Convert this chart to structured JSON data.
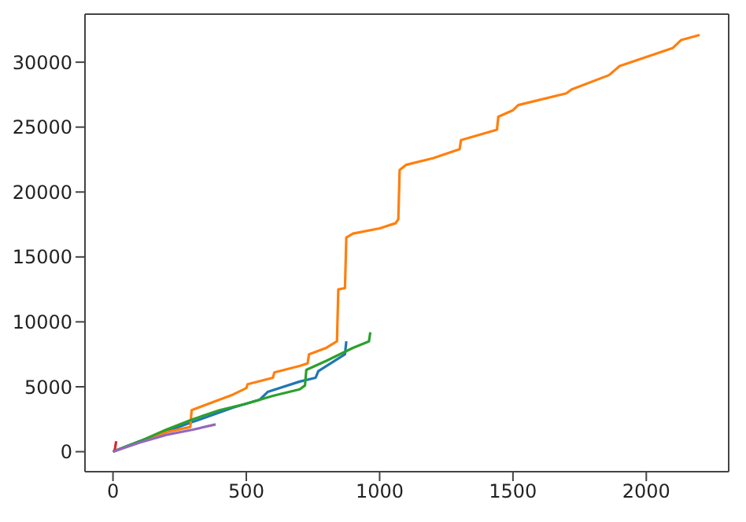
{
  "chart_data": {
    "type": "line",
    "xlim": [
      -105,
      2309
    ],
    "ylim": [
      -1540,
      33700
    ],
    "xticks": [
      0,
      500,
      1000,
      1500,
      2000
    ],
    "yticks": [
      0,
      5000,
      10000,
      15000,
      20000,
      25000,
      30000
    ],
    "marker": "none",
    "line_style": "solid",
    "series": [
      {
        "color": "#1f77b4",
        "x": [
          0,
          100,
          300,
          450,
          550,
          580,
          700,
          760,
          770,
          870,
          875
        ],
        "values": [
          0,
          800,
          2300,
          3400,
          4000,
          4600,
          5400,
          5700,
          6200,
          7500,
          8500
        ]
      },
      {
        "color": "#ff7f0e",
        "x": [
          0,
          200,
          290,
          295,
          450,
          500,
          505,
          600,
          605,
          700,
          730,
          735,
          800,
          840,
          845,
          870,
          875,
          900,
          1000,
          1060,
          1070,
          1075,
          1100,
          1200,
          1300,
          1305,
          1440,
          1445,
          1500,
          1520,
          1700,
          1720,
          1860,
          1900,
          2000,
          2100,
          2130,
          2200
        ],
        "values": [
          0,
          1500,
          1900,
          3200,
          4400,
          4900,
          5200,
          5700,
          6100,
          6600,
          6800,
          7500,
          8000,
          8500,
          12500,
          12600,
          16500,
          16800,
          17200,
          17600,
          17900,
          21700,
          22100,
          22600,
          23300,
          24000,
          24800,
          25800,
          26300,
          26700,
          27600,
          27900,
          29000,
          29700,
          30400,
          31100,
          31700,
          32100
        ]
      },
      {
        "color": "#2ca02c",
        "x": [
          0,
          100,
          200,
          300,
          400,
          500,
          600,
          700,
          720,
          725,
          800,
          900,
          960,
          965
        ],
        "values": [
          0,
          800,
          1700,
          2500,
          3200,
          3700,
          4300,
          4800,
          5100,
          6300,
          7000,
          8000,
          8500,
          9200
        ]
      },
      {
        "color": "#d62728",
        "x": [
          5,
          8,
          12
        ],
        "values": [
          0,
          300,
          800
        ]
      },
      {
        "color": "#9467bd",
        "x": [
          0,
          100,
          200,
          300,
          385
        ],
        "values": [
          0,
          700,
          1300,
          1700,
          2100
        ]
      }
    ]
  }
}
